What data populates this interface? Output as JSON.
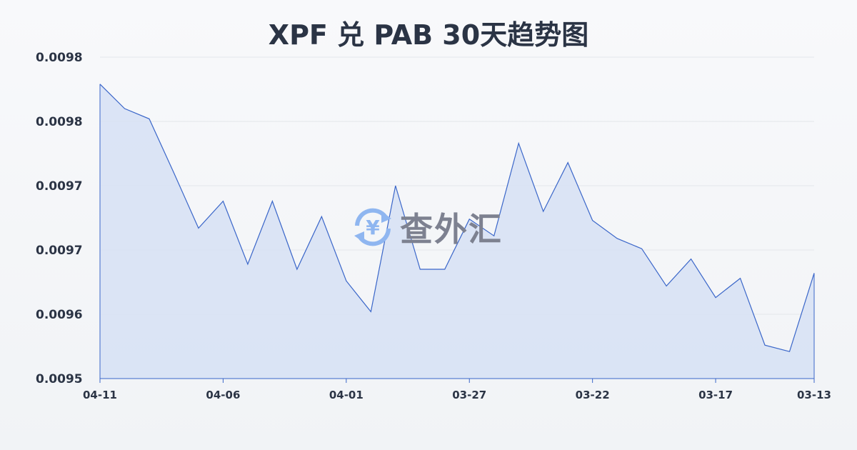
{
  "chart_data": {
    "type": "area",
    "title": "XPF 兑 PAB 30天趋势图",
    "xlabel": "",
    "ylabel": "",
    "x": [
      "04-11",
      "04-10",
      "04-09",
      "04-08",
      "04-07",
      "04-06",
      "04-05",
      "04-04",
      "04-03",
      "04-02",
      "04-01",
      "03-31",
      "03-30",
      "03-29",
      "03-28",
      "03-27",
      "03-26",
      "03-25",
      "03-24",
      "03-23",
      "03-22",
      "03-21",
      "03-20",
      "03-19",
      "03-18",
      "03-17",
      "03-16",
      "03-15",
      "03-14",
      "03-13"
    ],
    "values": [
      0.009779,
      0.00976,
      0.009752,
      0.00971,
      0.009667,
      0.009688,
      0.009639,
      0.009688,
      0.009635,
      0.009676,
      0.009626,
      0.009602,
      0.0097,
      0.009635,
      0.009635,
      0.009674,
      0.009661,
      0.009733,
      0.00968,
      0.009718,
      0.009673,
      0.009659,
      0.009651,
      0.009622,
      0.009643,
      0.009613,
      0.009628,
      0.009576,
      0.009571,
      0.009632
    ],
    "ylim": [
      0.00955,
      0.0098
    ],
    "y_ticks": [
      0.0098,
      0.00975,
      0.0097,
      0.00965,
      0.0096,
      0.00955
    ],
    "y_tick_labels": [
      "0.0098",
      "0.0098",
      "0.0097",
      "0.0097",
      "0.0096",
      "0.0095"
    ],
    "x_tick_labels": [
      "04-11",
      "04-06",
      "04-01",
      "03-27",
      "03-22",
      "03-17",
      "03-13"
    ],
    "grid": true,
    "colors": {
      "line": "#3a66c9",
      "fill": "#d6e0f5",
      "text": "#2b3445"
    }
  },
  "watermark": {
    "text": "查外汇",
    "icon": "yen-exchange-icon"
  }
}
